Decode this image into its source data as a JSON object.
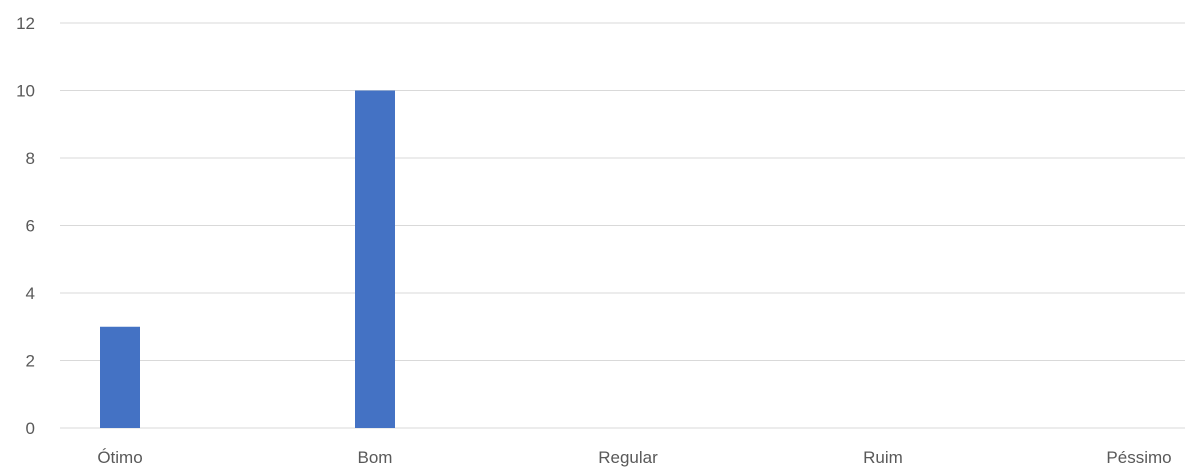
{
  "chart_data": {
    "type": "bar",
    "categories": [
      "Ótimo",
      "Bom",
      "Regular",
      "Ruim",
      "Péssimo"
    ],
    "values": [
      3,
      10,
      0,
      0,
      0
    ],
    "title": "",
    "xlabel": "",
    "ylabel": "",
    "ylim": [
      0,
      12
    ],
    "yticks": [
      0,
      2,
      4,
      6,
      8,
      10,
      12
    ],
    "grid": true,
    "legend": "none",
    "bar_color": "#4472c4"
  }
}
